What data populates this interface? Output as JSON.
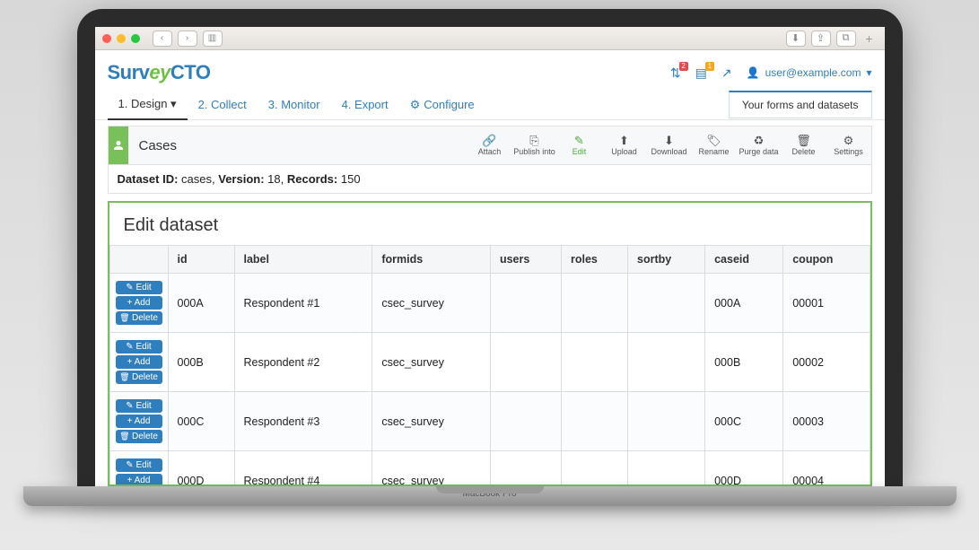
{
  "logo": {
    "part1": "Surv",
    "part2": "ey",
    "part3": "CTO"
  },
  "header": {
    "notif1_count": "2",
    "notif2_count": "1",
    "user_email": "user@example.com"
  },
  "nav": {
    "design": "1. Design",
    "collect": "2. Collect",
    "monitor": "3. Monitor",
    "export": "4. Export",
    "configure": "Configure",
    "forms_datasets": "Your forms and datasets"
  },
  "cases": {
    "title": "Cases",
    "tools": {
      "attach": "Attach",
      "publish": "Publish into",
      "edit": "Edit",
      "upload": "Upload",
      "download": "Download",
      "rename": "Rename",
      "purge": "Purge data",
      "delete": "Delete",
      "settings": "Settings"
    }
  },
  "meta": {
    "label_dataset": "Dataset ID:",
    "dataset_id": "cases,",
    "label_version": "Version:",
    "version": "18,",
    "label_records": "Records:",
    "records": "150"
  },
  "panel_title": "Edit dataset",
  "columns": {
    "id": "id",
    "label": "label",
    "formids": "formids",
    "users": "users",
    "roles": "roles",
    "sortby": "sortby",
    "caseid": "caseid",
    "coupon": "coupon"
  },
  "row_buttons": {
    "edit": "Edit",
    "add": "Add",
    "delete": "Delete"
  },
  "rows": [
    {
      "id": "000A",
      "label": "Respondent #1",
      "formids": "csec_survey",
      "users": "",
      "roles": "",
      "sortby": "",
      "caseid": "000A",
      "coupon": "00001"
    },
    {
      "id": "000B",
      "label": "Respondent #2",
      "formids": "csec_survey",
      "users": "",
      "roles": "",
      "sortby": "",
      "caseid": "000B",
      "coupon": "00002"
    },
    {
      "id": "000C",
      "label": "Respondent #3",
      "formids": "csec_survey",
      "users": "",
      "roles": "",
      "sortby": "",
      "caseid": "000C",
      "coupon": "00003"
    },
    {
      "id": "000D",
      "label": "Respondent #4",
      "formids": "csec_survey",
      "users": "",
      "roles": "",
      "sortby": "",
      "caseid": "000D",
      "coupon": "00004"
    }
  ],
  "base_label": "MacBook Pro"
}
